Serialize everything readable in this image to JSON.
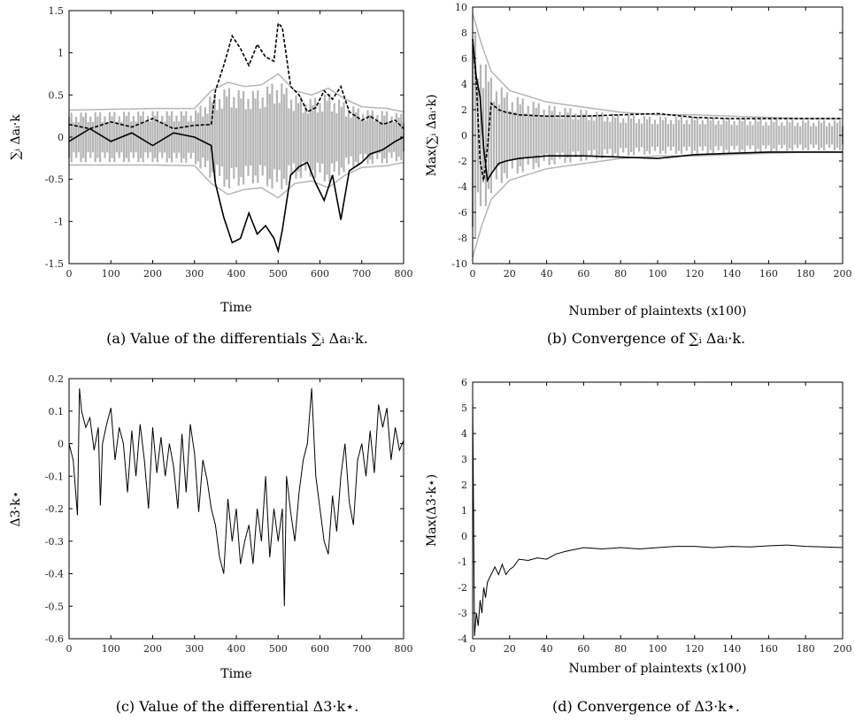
{
  "figure": {
    "panels": [
      {
        "caption": "(a) Value of the differentials ∑ᵢ Δaᵢ·k."
      },
      {
        "caption": "(b) Convergence of ∑ᵢ Δaᵢ·k."
      },
      {
        "caption": "(c) Value of the differential Δ3·k⋆."
      },
      {
        "caption": "(d) Convergence of Δ3·k⋆."
      }
    ]
  },
  "chart_data": [
    {
      "type": "line",
      "xlabel": "Time",
      "ylabel": "∑ᵢ Δaᵢ·k",
      "xlim": [
        0,
        800
      ],
      "ylim": [
        -1.5,
        1.5
      ],
      "xticks": [
        "0",
        "100",
        "200",
        "300",
        "400",
        "500",
        "600",
        "700",
        "800"
      ],
      "yticks": [
        "1.5",
        "1",
        "0.5",
        "0",
        "-0.5",
        "-1",
        "-1.5"
      ],
      "grid": false,
      "series": [
        {
          "style": "gray-band",
          "color": "#b5b5b5",
          "x": [
            0,
            100,
            200,
            300,
            340,
            380,
            420,
            460,
            500,
            540,
            580,
            620,
            660,
            700,
            760,
            800
          ],
          "upper": [
            0.32,
            0.33,
            0.34,
            0.34,
            0.55,
            0.65,
            0.6,
            0.62,
            0.75,
            0.55,
            0.5,
            0.58,
            0.45,
            0.36,
            0.34,
            0.3
          ],
          "lower": [
            -0.33,
            -0.33,
            -0.33,
            -0.34,
            -0.55,
            -0.68,
            -0.62,
            -0.6,
            -0.72,
            -0.55,
            -0.52,
            -0.6,
            -0.45,
            -0.36,
            -0.34,
            -0.3
          ]
        },
        {
          "style": "dashed",
          "color": "#000000",
          "x": [
            0,
            50,
            100,
            150,
            200,
            250,
            300,
            340,
            350,
            370,
            390,
            410,
            430,
            450,
            470,
            490,
            500,
            510,
            530,
            550,
            570,
            590,
            610,
            630,
            650,
            670,
            700,
            720,
            750,
            780,
            800
          ],
          "y": [
            0.15,
            0.1,
            0.18,
            0.12,
            0.22,
            0.1,
            0.14,
            0.15,
            0.55,
            0.85,
            1.2,
            1.05,
            0.85,
            1.1,
            0.95,
            0.9,
            1.35,
            1.3,
            0.6,
            0.5,
            0.3,
            0.35,
            0.55,
            0.45,
            0.6,
            0.3,
            0.2,
            0.25,
            0.15,
            0.2,
            0.1
          ]
        },
        {
          "style": "solid",
          "color": "#000000",
          "x": [
            0,
            50,
            100,
            150,
            200,
            250,
            300,
            340,
            350,
            370,
            390,
            410,
            430,
            450,
            470,
            490,
            500,
            510,
            530,
            550,
            570,
            590,
            610,
            630,
            650,
            670,
            700,
            720,
            750,
            780,
            800
          ],
          "y": [
            -0.05,
            0.1,
            -0.05,
            0.05,
            -0.1,
            0.05,
            0,
            -0.1,
            -0.55,
            -0.95,
            -1.25,
            -1.2,
            -0.9,
            -1.15,
            -1.05,
            -1.2,
            -1.35,
            -1.1,
            -0.45,
            -0.35,
            -0.3,
            -0.55,
            -0.75,
            -0.45,
            -0.98,
            -0.4,
            -0.3,
            -0.2,
            -0.15,
            -0.05,
            0
          ]
        }
      ]
    },
    {
      "type": "line",
      "xlabel": "Number of plaintexts (x100)",
      "ylabel": "Max(∑ᵢ Δaᵢ·k)",
      "xlim": [
        0,
        200
      ],
      "ylim": [
        -10,
        10
      ],
      "xticks": [
        "0",
        "20",
        "40",
        "60",
        "80",
        "100",
        "120",
        "140",
        "160",
        "180",
        "200"
      ],
      "yticks": [
        "10",
        "8",
        "6",
        "4",
        "2",
        "0",
        "-2",
        "-4",
        "-6",
        "-8",
        "-10"
      ],
      "grid": false,
      "series": [
        {
          "style": "gray-band",
          "color": "#b5b5b5",
          "x": [
            0,
            5,
            10,
            20,
            40,
            60,
            80,
            100,
            120,
            140,
            160,
            180,
            200
          ],
          "upper": [
            9.5,
            7,
            5,
            3.5,
            2.6,
            2.2,
            1.8,
            1.6,
            1.6,
            1.5,
            1.4,
            1.3,
            1.3
          ],
          "lower": [
            -9.5,
            -7,
            -5,
            -3.5,
            -2.6,
            -2.2,
            -1.8,
            -1.6,
            -1.6,
            -1.5,
            -1.4,
            -1.3,
            -1.3
          ]
        },
        {
          "style": "dashed",
          "color": "#000000",
          "x": [
            0,
            2,
            4,
            6,
            8,
            10,
            14,
            18,
            25,
            40,
            60,
            80,
            100,
            120,
            140,
            160,
            180,
            200
          ],
          "y": [
            7.5,
            4,
            -2,
            -3.5,
            -1,
            2.5,
            2,
            1.8,
            1.6,
            1.5,
            1.5,
            1.6,
            1.7,
            1.4,
            1.3,
            1.3,
            1.3,
            1.3
          ]
        },
        {
          "style": "solid",
          "color": "#000000",
          "x": [
            0,
            2,
            4,
            6,
            8,
            10,
            14,
            18,
            25,
            40,
            60,
            80,
            100,
            120,
            140,
            160,
            180,
            200
          ],
          "y": [
            7.5,
            4.5,
            3,
            -1,
            -3.5,
            -3,
            -2.2,
            -2,
            -1.8,
            -1.6,
            -1.6,
            -1.7,
            -1.8,
            -1.5,
            -1.4,
            -1.3,
            -1.3,
            -1.3
          ]
        }
      ]
    },
    {
      "type": "line",
      "xlabel": "Time",
      "ylabel": "Δ3·k⋆",
      "xlim": [
        0,
        800
      ],
      "ylim": [
        -0.6,
        0.2
      ],
      "xticks": [
        "0",
        "100",
        "200",
        "300",
        "400",
        "500",
        "600",
        "700",
        "800"
      ],
      "yticks": [
        "0.2",
        "0.1",
        "0",
        "-0.1",
        "-0.2",
        "-0.3",
        "-0.4",
        "-0.5",
        "-0.6"
      ],
      "grid": false,
      "series": [
        {
          "style": "solid",
          "color": "#000000",
          "x": [
            0,
            10,
            20,
            25,
            30,
            40,
            50,
            60,
            70,
            75,
            80,
            90,
            100,
            110,
            120,
            130,
            140,
            150,
            160,
            170,
            180,
            190,
            200,
            210,
            220,
            230,
            240,
            250,
            260,
            270,
            280,
            290,
            300,
            310,
            320,
            330,
            340,
            350,
            360,
            370,
            380,
            390,
            400,
            410,
            420,
            430,
            440,
            450,
            460,
            470,
            480,
            490,
            500,
            510,
            515,
            520,
            530,
            540,
            550,
            560,
            570,
            580,
            590,
            600,
            610,
            620,
            630,
            640,
            650,
            660,
            670,
            680,
            690,
            700,
            710,
            720,
            730,
            740,
            750,
            760,
            770,
            780,
            790,
            800
          ],
          "y": [
            0,
            -0.05,
            -0.22,
            0.17,
            0.1,
            0.05,
            0.08,
            -0.02,
            0.05,
            -0.19,
            0,
            0.06,
            0.11,
            -0.05,
            0.05,
            0,
            -0.15,
            0.04,
            -0.1,
            0.06,
            -0.05,
            -0.2,
            0.05,
            -0.09,
            0.02,
            -0.1,
            0,
            -0.07,
            -0.2,
            0.03,
            -0.15,
            0.06,
            -0.03,
            -0.21,
            -0.05,
            -0.11,
            -0.2,
            -0.25,
            -0.35,
            -0.4,
            -0.17,
            -0.3,
            -0.2,
            -0.37,
            -0.3,
            -0.25,
            -0.37,
            -0.2,
            -0.3,
            -0.1,
            -0.35,
            -0.2,
            -0.3,
            -0.2,
            -0.5,
            -0.1,
            -0.21,
            -0.3,
            -0.15,
            -0.05,
            0,
            0.17,
            -0.1,
            -0.2,
            -0.3,
            -0.34,
            -0.16,
            -0.27,
            -0.1,
            0,
            -0.18,
            -0.25,
            -0.05,
            0,
            -0.1,
            0.04,
            -0.09,
            0.12,
            0.05,
            0.11,
            -0.05,
            0.05,
            -0.02,
            0.01
          ]
        }
      ]
    },
    {
      "type": "line",
      "xlabel": "Number of plaintexts (x100)",
      "ylabel": "Max(Δ3·k⋆)",
      "xlim": [
        0,
        200
      ],
      "ylim": [
        -4,
        6
      ],
      "xticks": [
        "0",
        "20",
        "40",
        "60",
        "80",
        "100",
        "120",
        "140",
        "160",
        "180",
        "200"
      ],
      "yticks": [
        "6",
        "5",
        "4",
        "3",
        "2",
        "1",
        "0",
        "-1",
        "-2",
        "-3",
        "-4"
      ],
      "grid": false,
      "series": [
        {
          "style": "solid",
          "color": "#000000",
          "x": [
            0,
            1,
            2,
            3,
            4,
            5,
            6,
            7,
            8,
            10,
            12,
            14,
            16,
            18,
            20,
            22,
            25,
            30,
            35,
            40,
            45,
            50,
            60,
            70,
            80,
            90,
            100,
            110,
            120,
            130,
            140,
            150,
            160,
            170,
            180,
            190,
            200
          ],
          "y": [
            5.5,
            -3.9,
            -3,
            -3.5,
            -2.5,
            -3,
            -2,
            -2.4,
            -1.8,
            -1.5,
            -1.2,
            -1.5,
            -1.1,
            -1.5,
            -1.3,
            -1.2,
            -0.9,
            -0.95,
            -0.85,
            -0.9,
            -0.7,
            -0.6,
            -0.45,
            -0.5,
            -0.45,
            -0.5,
            -0.45,
            -0.4,
            -0.4,
            -0.45,
            -0.4,
            -0.42,
            -0.38,
            -0.35,
            -0.4,
            -0.42,
            -0.45
          ]
        }
      ]
    }
  ]
}
